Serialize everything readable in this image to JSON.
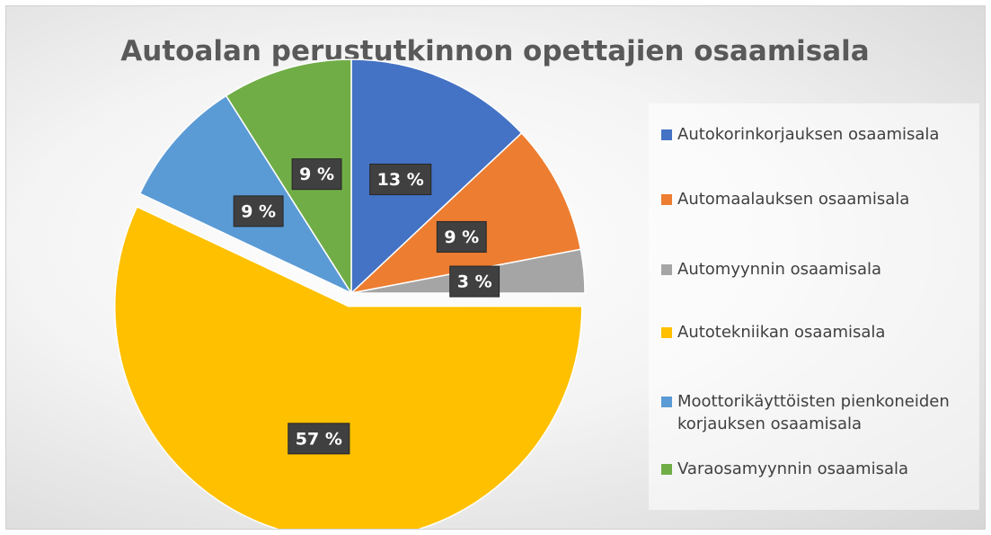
{
  "chart_data": {
    "type": "pie",
    "title": "Autoalan perustutkinnon opettajien osaamisala",
    "categories": [
      "Autokorinkorjauksen osaamisala",
      "Automaalauksen osaamisala",
      "Automyynnin osaamisala",
      "Autotekniikan osaamisala",
      "Moottorikäyttöisten pienkoneiden korjauksen osaamisala",
      "Varaosamyynnin osaamisala"
    ],
    "values": [
      13,
      9,
      3,
      57,
      9,
      9
    ],
    "value_labels": [
      "13 %",
      "9 %",
      "3 %",
      "57 %",
      "9 %",
      "9 %"
    ],
    "colors": [
      "#4472c4",
      "#ed7d31",
      "#a5a5a5",
      "#ffc000",
      "#5b9bd5",
      "#70ad47"
    ],
    "legend": "right"
  }
}
